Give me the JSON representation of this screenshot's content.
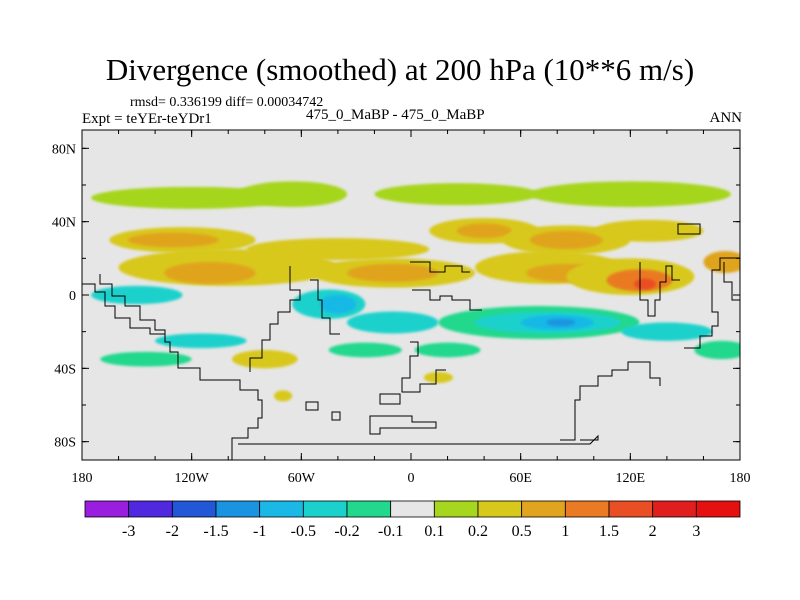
{
  "chart_data": {
    "type": "heatmap",
    "title": "Divergence (smoothed) at 200 hPa (10**6 m/s)",
    "subtitle_left": "rmsd= 0.336199 diff= 0.00034742",
    "label_left": "Expt = teYEr-teYDr1",
    "label_center": "475_0_MaBP - 475_0_MaBP",
    "label_right": "ANN",
    "x_ticks": [
      "180",
      "120W",
      "60W",
      "0",
      "60E",
      "120E",
      "180"
    ],
    "x_tick_lons": [
      -180,
      -120,
      -60,
      0,
      60,
      120,
      180
    ],
    "y_ticks": [
      "80N",
      "40N",
      "0",
      "40S",
      "80S"
    ],
    "y_tick_lats": [
      80,
      40,
      0,
      -40,
      -80
    ],
    "xlim": [
      -180,
      180
    ],
    "ylim": [
      -90,
      90
    ],
    "colorbar": {
      "labels": [
        "-3",
        "-2",
        "-1.5",
        "-1",
        "-0.5",
        "-0.2",
        "-0.1",
        "0.1",
        "0.2",
        "0.5",
        "1",
        "1.5",
        "2",
        "3"
      ],
      "levels": [
        -3,
        -2,
        -1.5,
        -1,
        -0.5,
        -0.2,
        -0.1,
        0.1,
        0.2,
        0.5,
        1,
        1.5,
        2,
        3
      ],
      "colors": [
        "#9a1ee0",
        "#5028e0",
        "#2258d8",
        "#1a94e0",
        "#19b8e6",
        "#1ad1cc",
        "#22d88c",
        "#e6e6e6",
        "#a6d61e",
        "#d8c81c",
        "#e0a41e",
        "#ea7a24",
        "#ea4e24",
        "#e01e1e",
        "#e51010"
      ]
    },
    "features": [
      {
        "lon": -120,
        "lat": 53,
        "rlon": 55,
        "rlat": 6,
        "value": 0.15
      },
      {
        "lon": -65,
        "lat": 55,
        "rlon": 30,
        "rlat": 7,
        "value": 0.15
      },
      {
        "lon": 25,
        "lat": 55,
        "rlon": 45,
        "rlat": 6,
        "value": 0.15
      },
      {
        "lon": 120,
        "lat": 55,
        "rlon": 55,
        "rlat": 7,
        "value": 0.15
      },
      {
        "lon": -125,
        "lat": 30,
        "rlon": 40,
        "rlat": 7,
        "value": 0.3
      },
      {
        "lon": -130,
        "lat": 30,
        "rlon": 25,
        "rlat": 4,
        "value": 0.7
      },
      {
        "lon": 40,
        "lat": 35,
        "rlon": 30,
        "rlat": 7,
        "value": 0.3
      },
      {
        "lon": 40,
        "lat": 35,
        "rlon": 15,
        "rlat": 4,
        "value": 0.7
      },
      {
        "lon": 85,
        "lat": 30,
        "rlon": 35,
        "rlat": 8,
        "value": 0.3
      },
      {
        "lon": 85,
        "lat": 30,
        "rlon": 20,
        "rlat": 5,
        "value": 0.7
      },
      {
        "lon": 130,
        "lat": 35,
        "rlon": 30,
        "rlat": 6,
        "value": 0.3
      },
      {
        "lon": -40,
        "lat": 25,
        "rlon": 50,
        "rlat": 6,
        "value": 0.3
      },
      {
        "lon": -100,
        "lat": 15,
        "rlon": 60,
        "rlat": 10,
        "value": 0.3
      },
      {
        "lon": -110,
        "lat": 12,
        "rlon": 25,
        "rlat": 6,
        "value": 0.7
      },
      {
        "lon": -10,
        "lat": 12,
        "rlon": 45,
        "rlat": 8,
        "value": 0.3
      },
      {
        "lon": -10,
        "lat": 12,
        "rlon": 25,
        "rlat": 5,
        "value": 0.7
      },
      {
        "lon": 75,
        "lat": 15,
        "rlon": 40,
        "rlat": 9,
        "value": 0.3
      },
      {
        "lon": 85,
        "lat": 12,
        "rlon": 22,
        "rlat": 5,
        "value": 0.7
      },
      {
        "lon": 120,
        "lat": 10,
        "rlon": 35,
        "rlat": 10,
        "value": 0.3
      },
      {
        "lon": 125,
        "lat": 8,
        "rlon": 18,
        "rlat": 6,
        "value": 1.2
      },
      {
        "lon": 128,
        "lat": 6,
        "rlon": 6,
        "rlat": 3,
        "value": 1.7
      },
      {
        "lon": 172,
        "lat": 18,
        "rlon": 12,
        "rlat": 6,
        "value": 0.7
      },
      {
        "lon": -150,
        "lat": 0,
        "rlon": 25,
        "rlat": 5,
        "value": -0.3
      },
      {
        "lon": -45,
        "lat": -5,
        "rlon": 20,
        "rlat": 8,
        "value": -0.3
      },
      {
        "lon": -40,
        "lat": -5,
        "rlon": 10,
        "rlat": 5,
        "value": -0.7
      },
      {
        "lon": -10,
        "lat": -15,
        "rlon": 25,
        "rlat": 6,
        "value": -0.3
      },
      {
        "lon": 70,
        "lat": -15,
        "rlon": 55,
        "rlat": 9,
        "value": -0.15
      },
      {
        "lon": 75,
        "lat": -15,
        "rlon": 40,
        "rlat": 6,
        "value": -0.3
      },
      {
        "lon": 80,
        "lat": -15,
        "rlon": 20,
        "rlat": 4,
        "value": -0.7
      },
      {
        "lon": 82,
        "lat": -15,
        "rlon": 8,
        "rlat": 2,
        "value": -1.2
      },
      {
        "lon": 140,
        "lat": -20,
        "rlon": 25,
        "rlat": 5,
        "value": -0.3
      },
      {
        "lon": -115,
        "lat": -25,
        "rlon": 25,
        "rlat": 4,
        "value": -0.3
      },
      {
        "lon": -80,
        "lat": -35,
        "rlon": 18,
        "rlat": 5,
        "value": 0.3
      },
      {
        "lon": -145,
        "lat": -35,
        "rlon": 25,
        "rlat": 4,
        "value": -0.15
      },
      {
        "lon": -25,
        "lat": -30,
        "rlon": 20,
        "rlat": 4,
        "value": -0.15
      },
      {
        "lon": 20,
        "lat": -30,
        "rlon": 18,
        "rlat": 4,
        "value": -0.15
      },
      {
        "lon": 170,
        "lat": -30,
        "rlon": 15,
        "rlat": 5,
        "value": -0.15
      },
      {
        "lon": 15,
        "lat": -45,
        "rlon": 8,
        "rlat": 3,
        "value": 0.3
      },
      {
        "lon": -70,
        "lat": -55,
        "rlon": 5,
        "rlat": 3,
        "value": 0.3
      }
    ]
  }
}
